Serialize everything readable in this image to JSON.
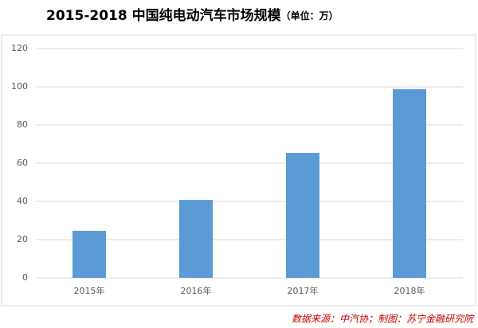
{
  "chart_data": {
    "type": "bar",
    "title": "2015-2018 中国纯电动汽车市场规模",
    "unit": "（单位：万）",
    "source": "数据来源：中汽协；制图：苏宁金融研究院",
    "categories": [
      "2015年",
      "2016年",
      "2017年",
      "2018年"
    ],
    "values": [
      24.6,
      40.8,
      65.4,
      98.7
    ],
    "color": "#5b9bd5",
    "ylim": [
      0,
      120
    ],
    "yticks": [
      0,
      20,
      40,
      60,
      80,
      100,
      120
    ],
    "grid": true
  }
}
